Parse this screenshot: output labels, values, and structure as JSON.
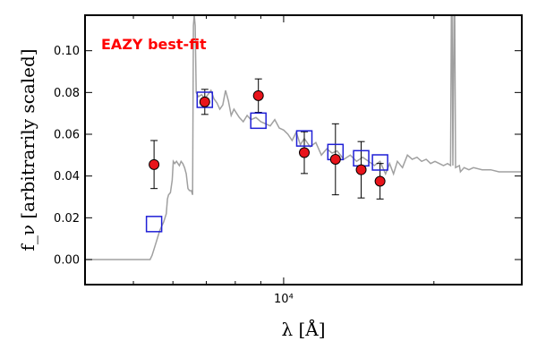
{
  "chart_data": {
    "type": "scatter",
    "annotation": "EAZY best-fit",
    "xlabel": "λ [Å]",
    "ylabel": "f_ν [arbitrarily scaled]",
    "xscale": "log",
    "xlim": [
      4000,
      30000
    ],
    "ylim": [
      -0.012,
      0.117
    ],
    "grid": false,
    "y_ticks": [
      0.0,
      0.02,
      0.04,
      0.06,
      0.08,
      0.1
    ],
    "y_tick_labels": [
      "0.00",
      "0.02",
      "0.04",
      "0.06",
      "0.08",
      "0.10"
    ],
    "x_tick_labels": [
      {
        "value": 10000,
        "label": "10⁴"
      }
    ],
    "colors": {
      "observed": "#e8141b",
      "model_photometry": "#1f1fd6",
      "template": "#a0a0a0",
      "annotation": "#ff0000"
    },
    "observed": [
      {
        "x": 5500,
        "y": 0.0455,
        "err": 0.0115
      },
      {
        "x": 6950,
        "y": 0.0755,
        "err": 0.006
      },
      {
        "x": 8900,
        "y": 0.0785,
        "err": 0.008
      },
      {
        "x": 11000,
        "y": 0.0512,
        "err": 0.01
      },
      {
        "x": 12700,
        "y": 0.048,
        "err": 0.017
      },
      {
        "x": 14300,
        "y": 0.043,
        "err": 0.0135
      },
      {
        "x": 15600,
        "y": 0.0375,
        "err": 0.0085
      }
    ],
    "model_photometry": [
      {
        "x": 5500,
        "y": 0.017
      },
      {
        "x": 6950,
        "y": 0.0765
      },
      {
        "x": 8900,
        "y": 0.0665
      },
      {
        "x": 11000,
        "y": 0.058
      },
      {
        "x": 12700,
        "y": 0.0515
      },
      {
        "x": 14300,
        "y": 0.0485
      },
      {
        "x": 15600,
        "y": 0.0465
      }
    ],
    "template": [
      [
        4000,
        0.0
      ],
      [
        5400,
        0.0
      ],
      [
        5450,
        0.002
      ],
      [
        5550,
        0.008
      ],
      [
        5650,
        0.014
      ],
      [
        5750,
        0.018
      ],
      [
        5820,
        0.022
      ],
      [
        5850,
        0.029
      ],
      [
        5880,
        0.031
      ],
      [
        5930,
        0.032
      ],
      [
        5980,
        0.038
      ],
      [
        6010,
        0.047
      ],
      [
        6050,
        0.046
      ],
      [
        6100,
        0.047
      ],
      [
        6180,
        0.045
      ],
      [
        6230,
        0.047
      ],
      [
        6280,
        0.046
      ],
      [
        6330,
        0.044
      ],
      [
        6380,
        0.041
      ],
      [
        6430,
        0.034
      ],
      [
        6480,
        0.033
      ],
      [
        6530,
        0.033
      ],
      [
        6570,
        0.031
      ],
      [
        6595,
        0.112
      ],
      [
        6620,
        0.117
      ],
      [
        6650,
        0.112
      ],
      [
        6680,
        0.08
      ],
      [
        6750,
        0.078
      ],
      [
        6850,
        0.079
      ],
      [
        6950,
        0.077
      ],
      [
        7050,
        0.079
      ],
      [
        7150,
        0.081
      ],
      [
        7250,
        0.077
      ],
      [
        7350,
        0.075
      ],
      [
        7450,
        0.072
      ],
      [
        7550,
        0.074
      ],
      [
        7650,
        0.081
      ],
      [
        7750,
        0.076
      ],
      [
        7850,
        0.069
      ],
      [
        7950,
        0.072
      ],
      [
        8050,
        0.07
      ],
      [
        8150,
        0.068
      ],
      [
        8300,
        0.066
      ],
      [
        8450,
        0.069
      ],
      [
        8600,
        0.067
      ],
      [
        8800,
        0.068
      ],
      [
        9000,
        0.066
      ],
      [
        9200,
        0.065
      ],
      [
        9400,
        0.064
      ],
      [
        9600,
        0.067
      ],
      [
        9800,
        0.063
      ],
      [
        10000,
        0.062
      ],
      [
        10200,
        0.06
      ],
      [
        10400,
        0.057
      ],
      [
        10600,
        0.061
      ],
      [
        10800,
        0.055
      ],
      [
        11000,
        0.058
      ],
      [
        11300,
        0.054
      ],
      [
        11600,
        0.056
      ],
      [
        11900,
        0.05
      ],
      [
        12200,
        0.053
      ],
      [
        12500,
        0.051
      ],
      [
        12800,
        0.052
      ],
      [
        13200,
        0.048
      ],
      [
        13600,
        0.05
      ],
      [
        14000,
        0.047
      ],
      [
        14400,
        0.049
      ],
      [
        14800,
        0.047
      ],
      [
        15200,
        0.045
      ],
      [
        15600,
        0.047
      ],
      [
        16000,
        0.041
      ],
      [
        16300,
        0.046
      ],
      [
        16600,
        0.041
      ],
      [
        16900,
        0.047
      ],
      [
        17300,
        0.044
      ],
      [
        17700,
        0.05
      ],
      [
        18100,
        0.048
      ],
      [
        18500,
        0.049
      ],
      [
        18900,
        0.047
      ],
      [
        19300,
        0.048
      ],
      [
        19700,
        0.046
      ],
      [
        20100,
        0.047
      ],
      [
        20500,
        0.046
      ],
      [
        20900,
        0.045
      ],
      [
        21300,
        0.046
      ],
      [
        21600,
        0.045
      ],
      [
        21680,
        0.117
      ],
      [
        21750,
        0.117
      ],
      [
        21830,
        0.045
      ],
      [
        21950,
        0.117
      ],
      [
        22020,
        0.117
      ],
      [
        22100,
        0.044
      ],
      [
        22500,
        0.045
      ],
      [
        22600,
        0.042
      ],
      [
        23000,
        0.044
      ],
      [
        23500,
        0.043
      ],
      [
        24000,
        0.044
      ],
      [
        25000,
        0.043
      ],
      [
        26000,
        0.043
      ],
      [
        27000,
        0.042
      ],
      [
        28000,
        0.042
      ],
      [
        30000,
        0.042
      ]
    ]
  }
}
